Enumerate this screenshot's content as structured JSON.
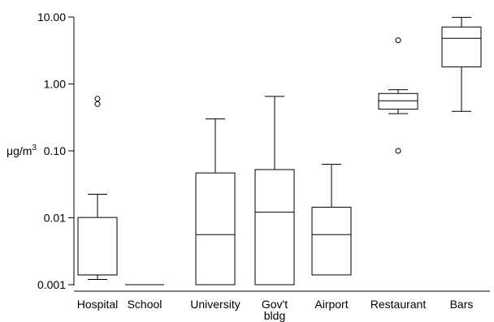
{
  "chart_data": {
    "type": "box",
    "ylabel": "μg/m",
    "ylabel_superscript": "3",
    "yscale": "log",
    "ylim": [
      0.001,
      10
    ],
    "yticks": [
      {
        "value": 10,
        "label": "10.00"
      },
      {
        "value": 1,
        "label": "1.00"
      },
      {
        "value": 0.1,
        "label": "0.10"
      },
      {
        "value": 0.01,
        "label": "0.01"
      },
      {
        "value": 0.001,
        "label": "0.001"
      }
    ],
    "categories": [
      "Hospital",
      "School",
      "University",
      "Gov't bldg",
      "Airport",
      "Restaurant",
      "Bars"
    ],
    "boxes": [
      {
        "category": "Hospital",
        "whisker_low": 0.0012,
        "q1": 0.0014,
        "median": 0.0014,
        "q3": 0.0101,
        "whisker_high": 0.0225,
        "outliers": [
          0.5,
          0.6
        ]
      },
      {
        "category": "School",
        "whisker_low": 0.001,
        "q1": 0.001,
        "median": 0.001,
        "q3": 0.001,
        "whisker_high": 0.001,
        "outliers": []
      },
      {
        "category": "University",
        "whisker_low": 0.001,
        "q1": 0.001,
        "median": 0.0056,
        "q3": 0.0468,
        "whisker_high": 0.3,
        "outliers": []
      },
      {
        "category": "Gov't bldg",
        "whisker_low": 0.001,
        "q1": 0.001,
        "median": 0.0121,
        "q3": 0.0525,
        "whisker_high": 0.65,
        "outliers": []
      },
      {
        "category": "Airport",
        "whisker_low": 0.0014,
        "q1": 0.0014,
        "median": 0.0056,
        "q3": 0.0144,
        "whisker_high": 0.063,
        "outliers": []
      },
      {
        "category": "Restaurant",
        "whisker_low": 0.36,
        "q1": 0.42,
        "median": 0.56,
        "q3": 0.72,
        "whisker_high": 0.82,
        "outliers": [
          0.1,
          4.5
        ]
      },
      {
        "category": "Bars",
        "whisker_low": 0.39,
        "q1": 1.8,
        "median": 4.8,
        "q3": 7.1,
        "whisker_high": 9.9,
        "outliers": []
      }
    ],
    "grid": false,
    "legend": "none"
  }
}
